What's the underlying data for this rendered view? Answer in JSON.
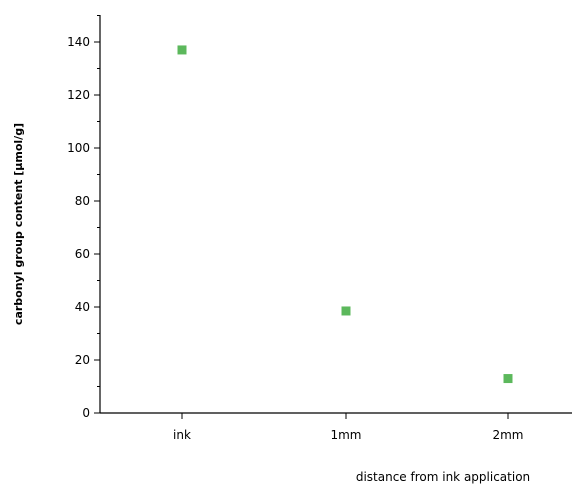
{
  "chart_data": {
    "type": "scatter",
    "title": "",
    "xlabel": "distance from ink application",
    "ylabel": "carbonyl group content [µmol/g]",
    "categories": [
      "ink",
      "1mm",
      "2mm"
    ],
    "series": [
      {
        "values": [
          137,
          38.5,
          13
        ],
        "color": "#5cb85c"
      }
    ],
    "ylim": [
      0,
      150
    ],
    "yticks": [
      0,
      20,
      40,
      60,
      80,
      100,
      120,
      140
    ],
    "grid": false,
    "legend": "none"
  }
}
